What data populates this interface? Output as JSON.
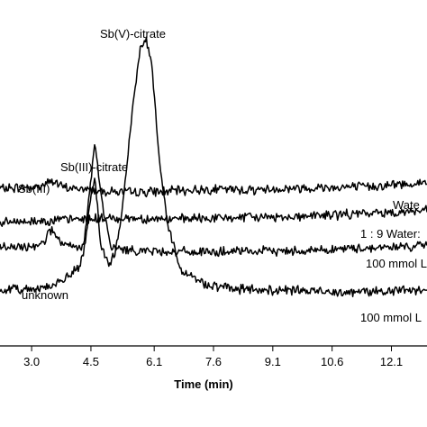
{
  "chart_data": {
    "type": "line",
    "xlabel": "Time (min)",
    "ylabel": "",
    "xlim": [
      2.2,
      13.0
    ],
    "ylim": [
      0,
      100
    ],
    "x_ticks": [
      3.0,
      4.5,
      6.1,
      7.6,
      9.1,
      10.6,
      12.1
    ],
    "x_tick_labels": [
      "3.0",
      "4.5",
      "6.1",
      "7.6",
      "9.1",
      "10.6",
      "12.1"
    ],
    "grid": false,
    "legend": "none",
    "series": [
      {
        "name": "Wate",
        "baseline": 48.0,
        "x": [
          2.2,
          3.2,
          3.5,
          3.8,
          4.6,
          5.5,
          6.5,
          7.5,
          8.5,
          9.5,
          10.5,
          11.5,
          12.5,
          13.0
        ],
        "y": [
          48.0,
          48.5,
          50.5,
          48.3,
          47.5,
          46.8,
          47.2,
          47.8,
          47.6,
          48.0,
          48.4,
          48.6,
          49.4,
          49.8
        ]
      },
      {
        "name": "1 : 9 Water:",
        "baseline": 38.0,
        "x": [
          2.2,
          3.5,
          4.5,
          5.5,
          6.5,
          7.5,
          8.5,
          9.5,
          10.5,
          11.5,
          12.5,
          13.0
        ],
        "y": [
          37.5,
          38.3,
          38.8,
          39.0,
          38.6,
          38.9,
          39.2,
          39.4,
          39.9,
          40.4,
          41.0,
          41.3
        ]
      },
      {
        "name": "100 mmol L",
        "baseline": 29.0,
        "x": [
          2.2,
          2.9,
          3.3,
          3.5,
          3.8,
          4.3,
          4.5,
          4.6,
          4.75,
          5.0,
          5.5,
          6.5,
          7.5,
          8.5,
          9.5,
          10.5,
          11.5,
          12.5,
          13.0
        ],
        "y": [
          30.0,
          30.0,
          31.8,
          35.5,
          30.5,
          29.8,
          50.5,
          62.2,
          46.0,
          30.0,
          29.2,
          28.8,
          28.6,
          28.8,
          29.0,
          29.4,
          29.9,
          30.3,
          30.6
        ]
      },
      {
        "name": "100 mmol L",
        "baseline": 17.0,
        "x": [
          2.2,
          3.0,
          3.6,
          3.9,
          4.2,
          4.35,
          4.5,
          4.6,
          4.75,
          4.95,
          5.1,
          5.3,
          5.55,
          5.75,
          5.9,
          6.05,
          6.2,
          6.45,
          6.8,
          7.2,
          7.5,
          8.0,
          9.0,
          10.0,
          11.0,
          12.0,
          13.0
        ],
        "y": [
          17.0,
          17.5,
          18.5,
          21.0,
          24.0,
          30.0,
          46.0,
          52.0,
          30.0,
          24.5,
          28.0,
          42.0,
          72.0,
          91.0,
          94.0,
          85.0,
          60.0,
          36.0,
          23.0,
          20.0,
          18.5,
          17.5,
          17.0,
          16.8,
          16.5,
          16.8,
          17.0
        ]
      }
    ],
    "annotations": {
      "sb3": "Sb(III)",
      "sb3_citrate": "Sb(III)-citrate",
      "sb5_citrate": "Sb(V)-citrate",
      "unknown": "unknown"
    }
  }
}
